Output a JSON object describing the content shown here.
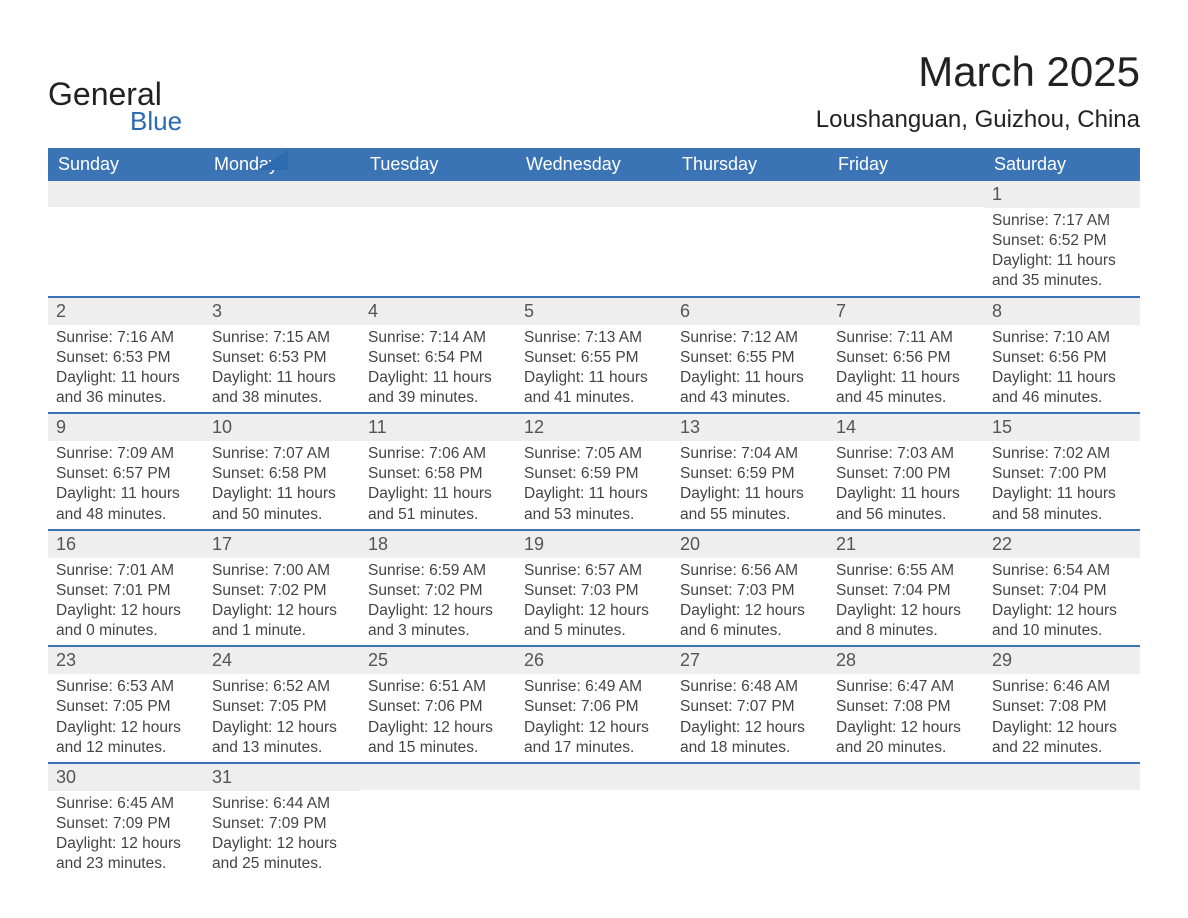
{
  "brand": {
    "word1": "General",
    "word2": "Blue",
    "word1_color": "#222222",
    "word2_color": "#2c6bb0",
    "triangle_color": "#2c6bb0"
  },
  "title": "March 2025",
  "subtitle": "Loushanguan, Guizhou, China",
  "colors": {
    "header_bg": "#3b74b5",
    "header_text": "#ffffff",
    "daynum_bg": "#eeeeee",
    "daynum_text": "#555555",
    "body_text": "#444444",
    "row_divider": "#3b74b5",
    "page_bg": "#ffffff"
  },
  "typography": {
    "title_fontsize": 42,
    "subtitle_fontsize": 24,
    "weekday_fontsize": 18,
    "daynum_fontsize": 18,
    "cell_fontsize": 15.5,
    "font_family": "Arial"
  },
  "layout": {
    "columns": 7,
    "rows": 6,
    "first_day_column_index": 6
  },
  "weekdays": [
    "Sunday",
    "Monday",
    "Tuesday",
    "Wednesday",
    "Thursday",
    "Friday",
    "Saturday"
  ],
  "days": [
    {
      "n": 1,
      "sunrise": "7:17 AM",
      "sunset": "6:52 PM",
      "daylight": "11 hours and 35 minutes."
    },
    {
      "n": 2,
      "sunrise": "7:16 AM",
      "sunset": "6:53 PM",
      "daylight": "11 hours and 36 minutes."
    },
    {
      "n": 3,
      "sunrise": "7:15 AM",
      "sunset": "6:53 PM",
      "daylight": "11 hours and 38 minutes."
    },
    {
      "n": 4,
      "sunrise": "7:14 AM",
      "sunset": "6:54 PM",
      "daylight": "11 hours and 39 minutes."
    },
    {
      "n": 5,
      "sunrise": "7:13 AM",
      "sunset": "6:55 PM",
      "daylight": "11 hours and 41 minutes."
    },
    {
      "n": 6,
      "sunrise": "7:12 AM",
      "sunset": "6:55 PM",
      "daylight": "11 hours and 43 minutes."
    },
    {
      "n": 7,
      "sunrise": "7:11 AM",
      "sunset": "6:56 PM",
      "daylight": "11 hours and 45 minutes."
    },
    {
      "n": 8,
      "sunrise": "7:10 AM",
      "sunset": "6:56 PM",
      "daylight": "11 hours and 46 minutes."
    },
    {
      "n": 9,
      "sunrise": "7:09 AM",
      "sunset": "6:57 PM",
      "daylight": "11 hours and 48 minutes."
    },
    {
      "n": 10,
      "sunrise": "7:07 AM",
      "sunset": "6:58 PM",
      "daylight": "11 hours and 50 minutes."
    },
    {
      "n": 11,
      "sunrise": "7:06 AM",
      "sunset": "6:58 PM",
      "daylight": "11 hours and 51 minutes."
    },
    {
      "n": 12,
      "sunrise": "7:05 AM",
      "sunset": "6:59 PM",
      "daylight": "11 hours and 53 minutes."
    },
    {
      "n": 13,
      "sunrise": "7:04 AM",
      "sunset": "6:59 PM",
      "daylight": "11 hours and 55 minutes."
    },
    {
      "n": 14,
      "sunrise": "7:03 AM",
      "sunset": "7:00 PM",
      "daylight": "11 hours and 56 minutes."
    },
    {
      "n": 15,
      "sunrise": "7:02 AM",
      "sunset": "7:00 PM",
      "daylight": "11 hours and 58 minutes."
    },
    {
      "n": 16,
      "sunrise": "7:01 AM",
      "sunset": "7:01 PM",
      "daylight": "12 hours and 0 minutes."
    },
    {
      "n": 17,
      "sunrise": "7:00 AM",
      "sunset": "7:02 PM",
      "daylight": "12 hours and 1 minute."
    },
    {
      "n": 18,
      "sunrise": "6:59 AM",
      "sunset": "7:02 PM",
      "daylight": "12 hours and 3 minutes."
    },
    {
      "n": 19,
      "sunrise": "6:57 AM",
      "sunset": "7:03 PM",
      "daylight": "12 hours and 5 minutes."
    },
    {
      "n": 20,
      "sunrise": "6:56 AM",
      "sunset": "7:03 PM",
      "daylight": "12 hours and 6 minutes."
    },
    {
      "n": 21,
      "sunrise": "6:55 AM",
      "sunset": "7:04 PM",
      "daylight": "12 hours and 8 minutes."
    },
    {
      "n": 22,
      "sunrise": "6:54 AM",
      "sunset": "7:04 PM",
      "daylight": "12 hours and 10 minutes."
    },
    {
      "n": 23,
      "sunrise": "6:53 AM",
      "sunset": "7:05 PM",
      "daylight": "12 hours and 12 minutes."
    },
    {
      "n": 24,
      "sunrise": "6:52 AM",
      "sunset": "7:05 PM",
      "daylight": "12 hours and 13 minutes."
    },
    {
      "n": 25,
      "sunrise": "6:51 AM",
      "sunset": "7:06 PM",
      "daylight": "12 hours and 15 minutes."
    },
    {
      "n": 26,
      "sunrise": "6:49 AM",
      "sunset": "7:06 PM",
      "daylight": "12 hours and 17 minutes."
    },
    {
      "n": 27,
      "sunrise": "6:48 AM",
      "sunset": "7:07 PM",
      "daylight": "12 hours and 18 minutes."
    },
    {
      "n": 28,
      "sunrise": "6:47 AM",
      "sunset": "7:08 PM",
      "daylight": "12 hours and 20 minutes."
    },
    {
      "n": 29,
      "sunrise": "6:46 AM",
      "sunset": "7:08 PM",
      "daylight": "12 hours and 22 minutes."
    },
    {
      "n": 30,
      "sunrise": "6:45 AM",
      "sunset": "7:09 PM",
      "daylight": "12 hours and 23 minutes."
    },
    {
      "n": 31,
      "sunrise": "6:44 AM",
      "sunset": "7:09 PM",
      "daylight": "12 hours and 25 minutes."
    }
  ],
  "labels": {
    "sunrise": "Sunrise:",
    "sunset": "Sunset:",
    "daylight": "Daylight:"
  }
}
